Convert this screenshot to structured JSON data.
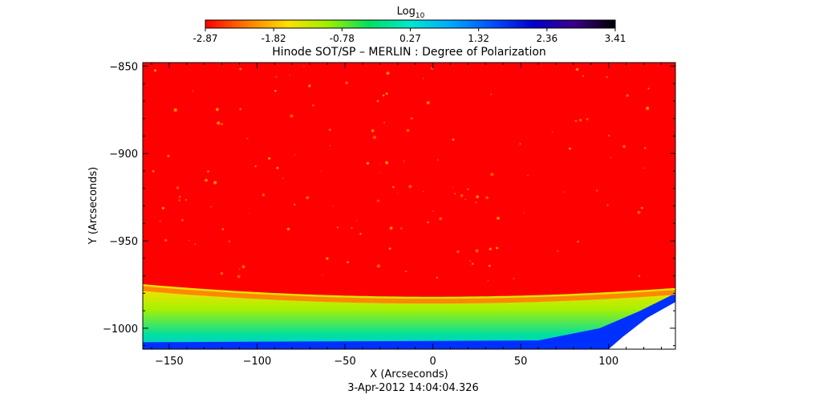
{
  "chart_data": {
    "type": "heatmap",
    "title": "Hinode SOT/SP – MERLIN : Degree of Polarization",
    "xlabel": "X (Arcseconds)",
    "ylabel": "Y (Arcseconds)",
    "timestamp": "3-Apr-2012 14:04:04.326",
    "xlim": [
      -165,
      138
    ],
    "ylim": [
      -1012,
      -848
    ],
    "x_ticks": [
      -150,
      -100,
      -50,
      0,
      50,
      100
    ],
    "y_ticks": [
      -850,
      -900,
      -950,
      -1000
    ],
    "colorbar": {
      "label_base": "Log",
      "label_sub": "10",
      "ticks": [
        "-2.87",
        "-1.82",
        "-0.78",
        "0.27",
        "1.32",
        "2.36",
        "3.41"
      ],
      "colors": [
        "#ff0000",
        "#ff7a00",
        "#ffe000",
        "#9cf000",
        "#00e060",
        "#00e8d0",
        "#00a8ff",
        "#0050ff",
        "#0000d0",
        "#3a0088",
        "#000000"
      ]
    },
    "colors": {
      "disk": "#ff0000",
      "limb": "#ff8800",
      "near_limb": "#ffe000",
      "off_limb": "#a8f000",
      "far_off_limb": "#00e0a0",
      "edge": "#0030ff"
    },
    "grid": false
  }
}
